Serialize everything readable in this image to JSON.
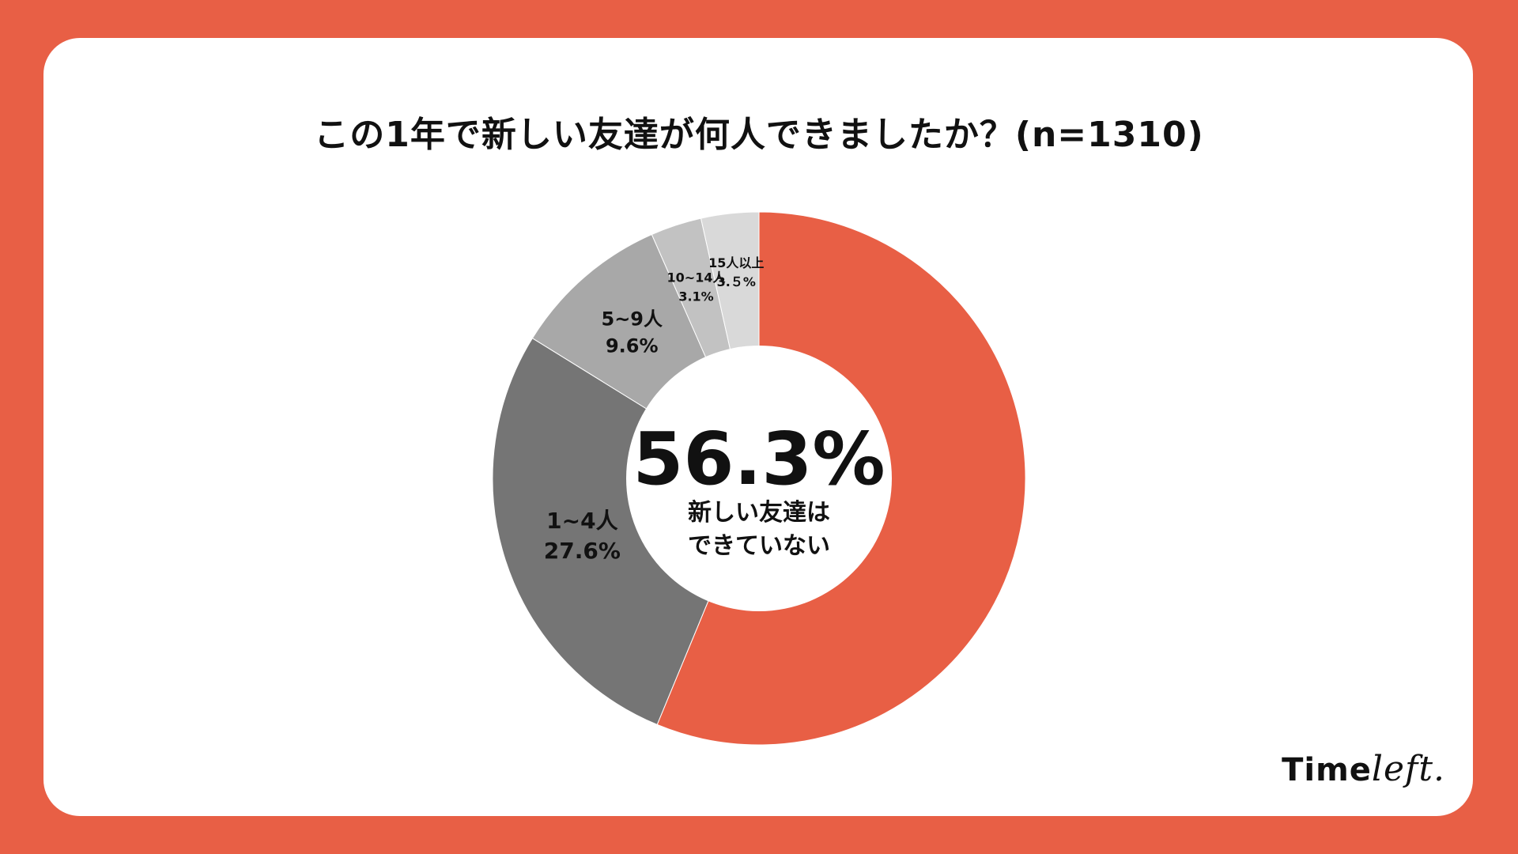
{
  "colors": {
    "background": "#E85F45",
    "card": "#ffffff"
  },
  "chart_data": {
    "type": "pie",
    "title": "この1年で新しい友達が何人できましたか？(n=1310)",
    "donut": true,
    "center_label": {
      "value": "56.3%",
      "line1": "新しい友達は",
      "line2": "できていない"
    },
    "slices": [
      {
        "label": "新しい友達はできていない",
        "value": 56.3,
        "color": "#E85F45",
        "display_label": "",
        "display_value": ""
      },
      {
        "label": "1~4人",
        "value": 27.6,
        "color": "#757575",
        "display_label": "1~4人",
        "display_value": "27.6%"
      },
      {
        "label": "5~9人",
        "value": 9.6,
        "color": "#A8A8A8",
        "display_label": "5~9人",
        "display_value": "9.6%"
      },
      {
        "label": "10~14人",
        "value": 3.1,
        "color": "#C2C2C2",
        "display_label": "10~14人",
        "display_value": "3.1%"
      },
      {
        "label": "15人以上",
        "value": 3.5,
        "color": "#D9D9D9",
        "display_label": "15人以上",
        "display_value": "3.５%"
      }
    ]
  },
  "brand": {
    "logo_text_a": "Time",
    "logo_text_b": "left."
  }
}
